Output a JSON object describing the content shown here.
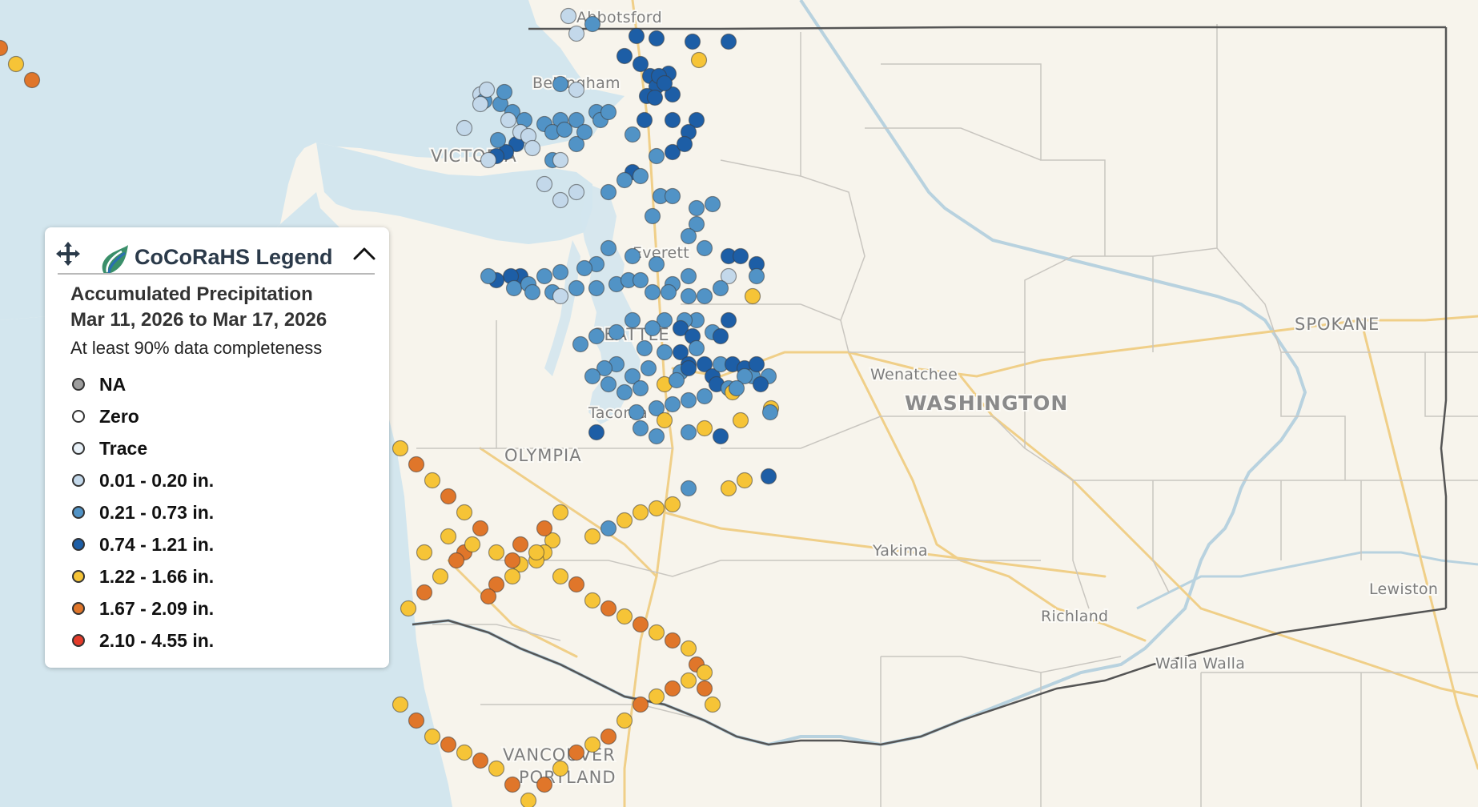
{
  "map": {
    "state_label": "WASHINGTON",
    "places": [
      {
        "name": "Abbotsford",
        "cls": ""
      },
      {
        "name": "Bellingham",
        "cls": ""
      },
      {
        "name": "VICTORIA",
        "cls": "big"
      },
      {
        "name": "Everett",
        "cls": ""
      },
      {
        "name": "SEATTLE",
        "cls": "big"
      },
      {
        "name": "Tacoma",
        "cls": ""
      },
      {
        "name": "OLYMPIA",
        "cls": "big"
      },
      {
        "name": "Wenatchee",
        "cls": ""
      },
      {
        "name": "SPOKANE",
        "cls": "big"
      },
      {
        "name": "Yakima",
        "cls": ""
      },
      {
        "name": "Richland",
        "cls": ""
      },
      {
        "name": "Lewiston",
        "cls": ""
      },
      {
        "name": "Walla Walla",
        "cls": ""
      },
      {
        "name": "VANCOUVER",
        "cls": "big"
      },
      {
        "name": "PORTLAND",
        "cls": "big"
      }
    ],
    "colors": {
      "water": "#d3e6ee",
      "land": "#f7f4ec",
      "road": "#f0cf88",
      "county_line": "#c9c6c0",
      "state_line": "#555555",
      "cat_1": "#c3d8ea",
      "cat_2": "#5193c6",
      "cat_3": "#1d5ea6",
      "cat_4": "#f6c437",
      "cat_5": "#e0762a",
      "cat_6": "#e43b2a"
    },
    "stations": [
      [
        720,
        42,
        1
      ],
      [
        740,
        30,
        2
      ],
      [
        710,
        20,
        1
      ],
      [
        795,
        45,
        3
      ],
      [
        820,
        48,
        3
      ],
      [
        865,
        52,
        3
      ],
      [
        910,
        52,
        3
      ],
      [
        873,
        75,
        4
      ],
      [
        780,
        70,
        3
      ],
      [
        800,
        80,
        3
      ],
      [
        812,
        95,
        3
      ],
      [
        835,
        92,
        3
      ],
      [
        820,
        108,
        3
      ],
      [
        808,
        120,
        3
      ],
      [
        818,
        122,
        3
      ],
      [
        840,
        118,
        3
      ],
      [
        823,
        95,
        3
      ],
      [
        830,
        104,
        3
      ],
      [
        700,
        105,
        2
      ],
      [
        720,
        112,
        1
      ],
      [
        600,
        118,
        1
      ],
      [
        605,
        126,
        2
      ],
      [
        625,
        130,
        2
      ],
      [
        640,
        140,
        2
      ],
      [
        600,
        130,
        1
      ],
      [
        608,
        112,
        1
      ],
      [
        580,
        160,
        1
      ],
      [
        630,
        115,
        2
      ],
      [
        655,
        150,
        2
      ],
      [
        680,
        155,
        2
      ],
      [
        700,
        150,
        2
      ],
      [
        690,
        165,
        2
      ],
      [
        705,
        162,
        2
      ],
      [
        720,
        150,
        2
      ],
      [
        745,
        140,
        2
      ],
      [
        750,
        150,
        2
      ],
      [
        720,
        180,
        2
      ],
      [
        690,
        200,
        2
      ],
      [
        730,
        165,
        2
      ],
      [
        760,
        140,
        2
      ],
      [
        790,
        168,
        2
      ],
      [
        805,
        150,
        3
      ],
      [
        840,
        150,
        3
      ],
      [
        870,
        150,
        3
      ],
      [
        860,
        165,
        3
      ],
      [
        790,
        215,
        3
      ],
      [
        800,
        220,
        2
      ],
      [
        820,
        195,
        2
      ],
      [
        840,
        190,
        3
      ],
      [
        855,
        180,
        3
      ],
      [
        645,
        180,
        3
      ],
      [
        632,
        190,
        3
      ],
      [
        620,
        195,
        3
      ],
      [
        622,
        175,
        2
      ],
      [
        650,
        165,
        1
      ],
      [
        635,
        150,
        1
      ],
      [
        660,
        170,
        1
      ],
      [
        665,
        185,
        1
      ],
      [
        700,
        200,
        1
      ],
      [
        610,
        200,
        1
      ],
      [
        680,
        230,
        1
      ],
      [
        700,
        250,
        1
      ],
      [
        720,
        240,
        1
      ],
      [
        780,
        225,
        2
      ],
      [
        760,
        240,
        2
      ],
      [
        825,
        245,
        2
      ],
      [
        840,
        245,
        2
      ],
      [
        870,
        260,
        2
      ],
      [
        890,
        255,
        2
      ],
      [
        870,
        280,
        2
      ],
      [
        860,
        295,
        2
      ],
      [
        815,
        270,
        2
      ],
      [
        880,
        310,
        2
      ],
      [
        910,
        320,
        3
      ],
      [
        925,
        320,
        3
      ],
      [
        945,
        330,
        3
      ],
      [
        945,
        345,
        2
      ],
      [
        910,
        345,
        1
      ],
      [
        900,
        360,
        2
      ],
      [
        860,
        345,
        2
      ],
      [
        840,
        355,
        2
      ],
      [
        820,
        330,
        2
      ],
      [
        790,
        320,
        2
      ],
      [
        760,
        310,
        2
      ],
      [
        745,
        330,
        2
      ],
      [
        730,
        335,
        2
      ],
      [
        700,
        340,
        2
      ],
      [
        680,
        345,
        2
      ],
      [
        650,
        345,
        3
      ],
      [
        638,
        345,
        3
      ],
      [
        620,
        350,
        3
      ],
      [
        610,
        345,
        2
      ],
      [
        642,
        360,
        2
      ],
      [
        660,
        355,
        2
      ],
      [
        665,
        365,
        2
      ],
      [
        690,
        365,
        2
      ],
      [
        700,
        370,
        1
      ],
      [
        720,
        360,
        2
      ],
      [
        745,
        360,
        2
      ],
      [
        770,
        355,
        2
      ],
      [
        785,
        350,
        2
      ],
      [
        800,
        350,
        2
      ],
      [
        815,
        365,
        2
      ],
      [
        835,
        365,
        2
      ],
      [
        860,
        370,
        2
      ],
      [
        880,
        370,
        2
      ],
      [
        870,
        400,
        2
      ],
      [
        855,
        400,
        2
      ],
      [
        830,
        400,
        2
      ],
      [
        815,
        410,
        2
      ],
      [
        790,
        400,
        2
      ],
      [
        770,
        415,
        2
      ],
      [
        745,
        420,
        2
      ],
      [
        725,
        430,
        2
      ],
      [
        805,
        435,
        2
      ],
      [
        850,
        410,
        3
      ],
      [
        865,
        420,
        3
      ],
      [
        890,
        415,
        2
      ],
      [
        900,
        420,
        3
      ],
      [
        870,
        435,
        2
      ],
      [
        850,
        440,
        3
      ],
      [
        860,
        455,
        3
      ],
      [
        850,
        465,
        2
      ],
      [
        830,
        440,
        2
      ],
      [
        810,
        460,
        2
      ],
      [
        790,
        470,
        2
      ],
      [
        770,
        455,
        2
      ],
      [
        755,
        460,
        2
      ],
      [
        740,
        470,
        2
      ],
      [
        760,
        480,
        2
      ],
      [
        780,
        490,
        2
      ],
      [
        800,
        485,
        2
      ],
      [
        830,
        480,
        4
      ],
      [
        845,
        475,
        2
      ],
      [
        860,
        460,
        3
      ],
      [
        880,
        455,
        3
      ],
      [
        890,
        470,
        3
      ],
      [
        900,
        455,
        2
      ],
      [
        915,
        455,
        3
      ],
      [
        930,
        460,
        3
      ],
      [
        940,
        470,
        2
      ],
      [
        945,
        455,
        3
      ],
      [
        930,
        470,
        2
      ],
      [
        895,
        480,
        3
      ],
      [
        910,
        485,
        2
      ],
      [
        880,
        495,
        2
      ],
      [
        860,
        500,
        2
      ],
      [
        840,
        505,
        2
      ],
      [
        820,
        510,
        2
      ],
      [
        795,
        515,
        2
      ],
      [
        745,
        540,
        3
      ],
      [
        800,
        535,
        2
      ],
      [
        830,
        525,
        4
      ],
      [
        820,
        545,
        2
      ],
      [
        860,
        540,
        2
      ],
      [
        880,
        535,
        4
      ],
      [
        900,
        545,
        3
      ],
      [
        925,
        525,
        4
      ],
      [
        915,
        490,
        4
      ],
      [
        920,
        485,
        2
      ],
      [
        960,
        470,
        2
      ],
      [
        910,
        400,
        3
      ],
      [
        940,
        370,
        4
      ],
      [
        950,
        480,
        3
      ],
      [
        963,
        510,
        4
      ],
      [
        962,
        515,
        2
      ],
      [
        960,
        595,
        3
      ],
      [
        930,
        600,
        4
      ],
      [
        910,
        610,
        4
      ],
      [
        860,
        610,
        2
      ],
      [
        840,
        630,
        4
      ],
      [
        820,
        635,
        4
      ],
      [
        800,
        640,
        4
      ],
      [
        780,
        650,
        4
      ],
      [
        760,
        660,
        2
      ],
      [
        740,
        670,
        4
      ],
      [
        700,
        640,
        4
      ],
      [
        690,
        675,
        4
      ],
      [
        680,
        690,
        4
      ],
      [
        670,
        700,
        4
      ],
      [
        650,
        705,
        4
      ],
      [
        640,
        720,
        4
      ],
      [
        620,
        730,
        5
      ],
      [
        610,
        745,
        5
      ],
      [
        580,
        690,
        5
      ],
      [
        560,
        670,
        4
      ],
      [
        530,
        690,
        4
      ],
      [
        620,
        690,
        4
      ],
      [
        650,
        680,
        5
      ],
      [
        670,
        690,
        4
      ],
      [
        640,
        700,
        5
      ],
      [
        680,
        660,
        5
      ],
      [
        700,
        720,
        4
      ],
      [
        720,
        730,
        5
      ],
      [
        740,
        750,
        4
      ],
      [
        760,
        760,
        5
      ],
      [
        780,
        770,
        4
      ],
      [
        800,
        780,
        5
      ],
      [
        820,
        790,
        4
      ],
      [
        840,
        800,
        5
      ],
      [
        860,
        810,
        4
      ],
      [
        870,
        830,
        5
      ],
      [
        880,
        840,
        4
      ],
      [
        880,
        860,
        5
      ],
      [
        890,
        880,
        4
      ],
      [
        860,
        850,
        4
      ],
      [
        840,
        860,
        5
      ],
      [
        820,
        870,
        4
      ],
      [
        800,
        880,
        5
      ],
      [
        780,
        900,
        4
      ],
      [
        760,
        920,
        5
      ],
      [
        740,
        930,
        4
      ],
      [
        720,
        940,
        5
      ],
      [
        700,
        960,
        4
      ],
      [
        680,
        980,
        5
      ],
      [
        660,
        1000,
        4
      ],
      [
        640,
        980,
        5
      ],
      [
        620,
        960,
        4
      ],
      [
        600,
        950,
        5
      ],
      [
        580,
        940,
        4
      ],
      [
        560,
        930,
        5
      ],
      [
        540,
        920,
        4
      ],
      [
        520,
        900,
        5
      ],
      [
        500,
        880,
        4
      ],
      [
        480,
        860,
        5
      ],
      [
        460,
        840,
        4
      ],
      [
        450,
        820,
        5
      ],
      [
        470,
        800,
        4
      ],
      [
        490,
        780,
        5
      ],
      [
        510,
        760,
        4
      ],
      [
        530,
        740,
        5
      ],
      [
        550,
        720,
        4
      ],
      [
        570,
        700,
        5
      ],
      [
        590,
        680,
        4
      ],
      [
        600,
        660,
        5
      ],
      [
        580,
        640,
        4
      ],
      [
        560,
        620,
        5
      ],
      [
        540,
        600,
        4
      ],
      [
        520,
        580,
        5
      ],
      [
        500,
        560,
        4
      ],
      [
        480,
        540,
        5
      ],
      [
        460,
        520,
        4
      ],
      [
        440,
        500,
        5
      ],
      [
        420,
        480,
        4
      ],
      [
        400,
        460,
        5
      ],
      [
        380,
        440,
        4
      ],
      [
        360,
        420,
        5
      ],
      [
        340,
        400,
        4
      ],
      [
        320,
        380,
        5
      ],
      [
        300,
        360,
        4
      ],
      [
        280,
        340,
        5
      ],
      [
        260,
        320,
        4
      ],
      [
        240,
        300,
        5
      ],
      [
        220,
        280,
        4
      ],
      [
        200,
        260,
        5
      ],
      [
        180,
        240,
        4
      ],
      [
        160,
        220,
        5
      ],
      [
        140,
        200,
        4
      ],
      [
        120,
        180,
        5
      ],
      [
        100,
        160,
        4
      ],
      [
        80,
        140,
        5
      ],
      [
        60,
        120,
        4
      ],
      [
        40,
        100,
        5
      ],
      [
        20,
        80,
        4
      ],
      [
        0,
        60,
        5
      ]
    ]
  },
  "legend": {
    "title": "CoCoRaHS Legend",
    "line1": "Accumulated Precipitation",
    "line2": "Mar 11, 2026 to Mar 17, 2026",
    "note": "At least 90% data completeness",
    "items": [
      {
        "label": "NA",
        "color": "#9d9d9d"
      },
      {
        "label": "Zero",
        "color": "#ffffff"
      },
      {
        "label": "Trace",
        "color": "#e8f1f8"
      },
      {
        "label": "0.01 - 0.20 in.",
        "color": "#c3d8ea"
      },
      {
        "label": "0.21 - 0.73 in.",
        "color": "#5193c6"
      },
      {
        "label": "0.74 - 1.21 in.",
        "color": "#1d5ea6"
      },
      {
        "label": "1.22 - 1.66 in.",
        "color": "#f6c437"
      },
      {
        "label": "1.67 - 2.09 in.",
        "color": "#e0762a"
      },
      {
        "label": "2.10 - 4.55 in.",
        "color": "#e43b2a"
      }
    ]
  }
}
